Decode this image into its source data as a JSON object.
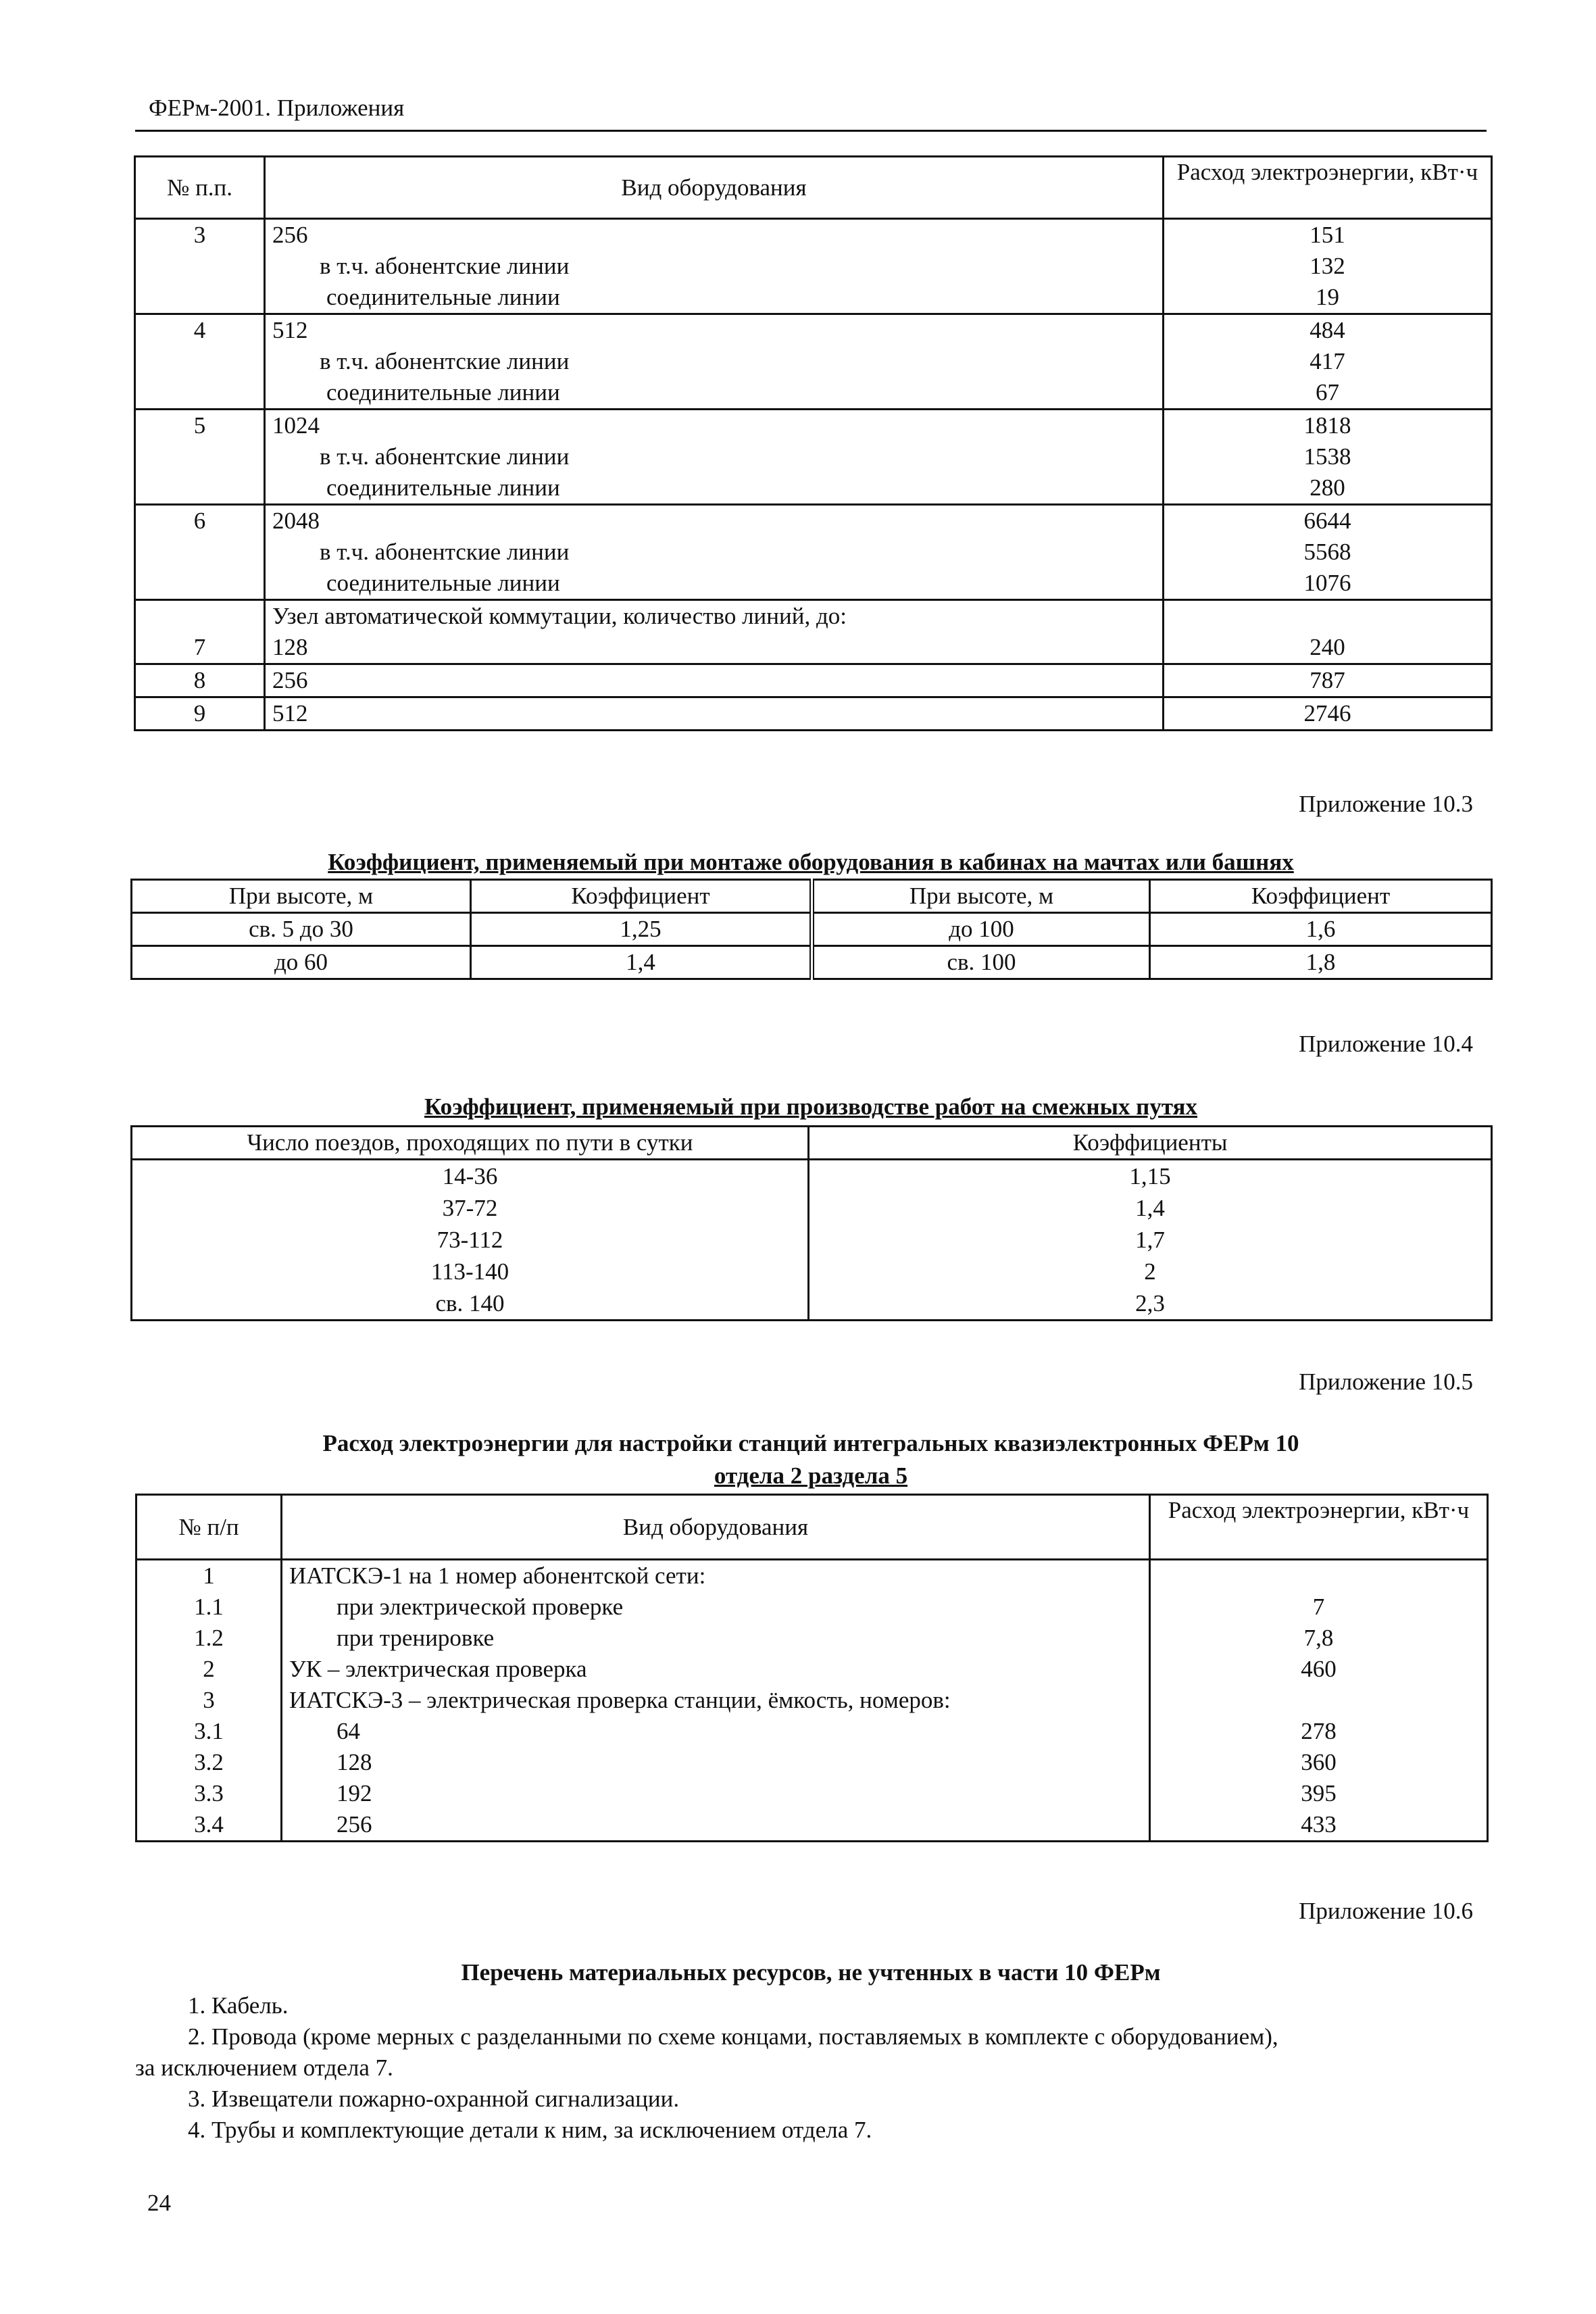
{
  "header": "ФЕРм-2001. Приложения",
  "table1": {
    "headers": [
      "№ п.п.",
      "Вид оборудования",
      "Расход электроэнергии, кВт·ч"
    ],
    "groups": [
      {
        "no": "3",
        "rows": [
          [
            "256",
            "151"
          ],
          [
            "в т.ч. абонентские линии",
            "132"
          ],
          [
            "соединительные линии",
            "19"
          ]
        ]
      },
      {
        "no": "4",
        "rows": [
          [
            "512",
            "484"
          ],
          [
            "в т.ч. абонентские линии",
            "417"
          ],
          [
            "соединительные линии",
            "67"
          ]
        ]
      },
      {
        "no": "5",
        "rows": [
          [
            "1024",
            "1818"
          ],
          [
            "в т.ч. абонентские линии",
            "1538"
          ],
          [
            "соединительные линии",
            "280"
          ]
        ]
      },
      {
        "no": "6",
        "rows": [
          [
            "2048",
            "6644"
          ],
          [
            "в т.ч. абонентские линии",
            "5568"
          ],
          [
            "соединительные линии",
            "1076"
          ]
        ]
      }
    ],
    "node_label": "Узел автоматической коммутации, количество линий, до:",
    "node_rows": [
      [
        "7",
        "128",
        "240"
      ],
      [
        "8",
        "256",
        "787"
      ],
      [
        "9",
        "512",
        "2746"
      ]
    ]
  },
  "app103": {
    "label": "Приложение 10.3",
    "title": "Коэффициент, применяемый при монтаже оборудования в кабинах на мачтах или башнях",
    "headers": [
      "При высоте, м",
      "Коэффициент",
      "При высоте, м",
      "Коэффициент"
    ],
    "rows": [
      [
        "св. 5 до 30",
        "1,25",
        "до 100",
        "1,6"
      ],
      [
        "до 60",
        "1,4",
        "св. 100",
        "1,8"
      ]
    ]
  },
  "app104": {
    "label": "Приложение 10.4",
    "title": "Коэффициент, применяемый при производстве работ на смежных путях",
    "headers": [
      "Число поездов, проходящих по пути в сутки",
      "Коэффициенты"
    ],
    "col1": [
      "14-36",
      "37-72",
      "73-112",
      "113-140",
      "св. 140"
    ],
    "col2": [
      "1,15",
      "1,4",
      "1,7",
      "2",
      "2,3"
    ]
  },
  "app105": {
    "label": "Приложение 10.5",
    "title1": "Расход электроэнергии для настройки станций интегральных квазиэлектронных ФЕРм 10",
    "title2": "отдела 2 раздела 5",
    "headers": [
      "№ п/п",
      "Вид оборудования",
      "Расход электроэнергии, кВт·ч"
    ],
    "rows": [
      [
        "1",
        "ИАТСКЭ-1 на 1 номер абонентской сети:",
        ""
      ],
      [
        "1.1",
        "при электрической проверке",
        "7"
      ],
      [
        "1.2",
        "при тренировке",
        "7,8"
      ],
      [
        "2",
        "УК – электрическая проверка",
        "460"
      ],
      [
        "3",
        "ИАТСКЭ-3 – электрическая проверка станции, ёмкость, номеров:",
        ""
      ],
      [
        "3.1",
        "64",
        "278"
      ],
      [
        "3.2",
        "128",
        "360"
      ],
      [
        "3.3",
        "192",
        "395"
      ],
      [
        "3.4",
        "256",
        "433"
      ]
    ]
  },
  "app106": {
    "label": "Приложение 10.6",
    "title": "Перечень материальных ресурсов, не учтенных в части 10 ФЕРм",
    "items": [
      "1. Кабель.",
      "2. Провода (кроме мерных с разделанными по схеме концами, поставляемых в комплекте с оборудованием),",
      "за исключением отдела 7.",
      "3. Извещатели пожарно-охранной сигнализации.",
      "4. Трубы и комплектующие детали к ним, за исключением отдела 7."
    ]
  },
  "page_number": "24"
}
